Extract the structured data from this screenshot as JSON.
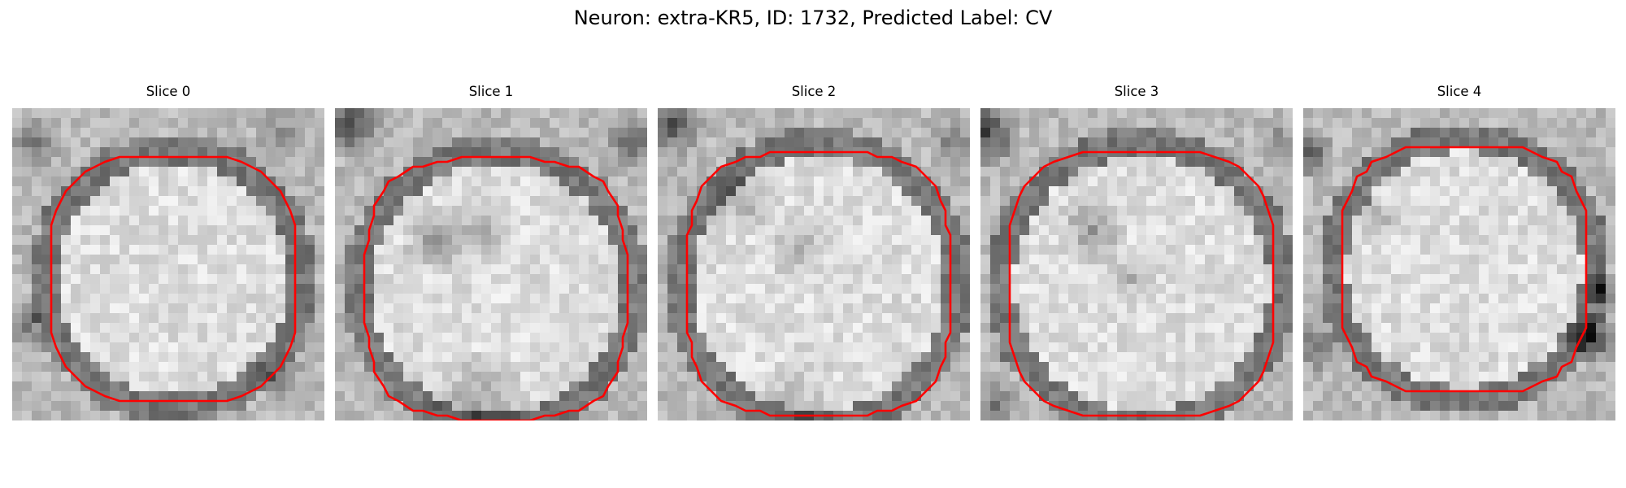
{
  "figure": {
    "title": "Neuron: extra-KR5, ID: 1732, Predicted Label: CV"
  },
  "colors": {
    "contour": "#ff0000",
    "background": "#ffffff"
  },
  "slices": [
    {
      "title": "Slice 0"
    },
    {
      "title": "Slice 1"
    },
    {
      "title": "Slice 2"
    },
    {
      "title": "Slice 3"
    },
    {
      "title": "Slice 4"
    }
  ]
}
